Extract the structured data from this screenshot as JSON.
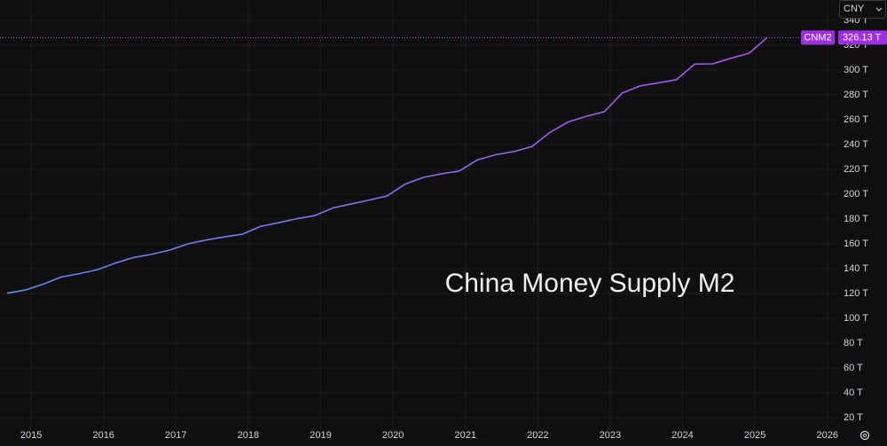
{
  "chart_data": {
    "type": "line",
    "annotation": "China Money Supply M2",
    "currency": "CNY",
    "x": [
      2014.667,
      2014.917,
      2015.167,
      2015.417,
      2015.667,
      2015.917,
      2016.167,
      2016.417,
      2016.667,
      2016.917,
      2017.167,
      2017.417,
      2017.667,
      2017.917,
      2018.167,
      2018.417,
      2018.667,
      2018.917,
      2019.167,
      2019.417,
      2019.667,
      2019.917,
      2020.167,
      2020.417,
      2020.667,
      2020.917,
      2021.167,
      2021.417,
      2021.667,
      2021.917,
      2022.167,
      2022.417,
      2022.667,
      2022.917,
      2023.167,
      2023.417,
      2023.667,
      2023.917,
      2024.167,
      2024.417,
      2024.667,
      2024.917,
      2025.167
    ],
    "series": [
      {
        "name": "CNM2",
        "colors": [
          "#5b8def",
          "#b14ff0"
        ],
        "values": [
          120.2,
          122.8,
          127.5,
          133.3,
          136.0,
          139.2,
          144.6,
          149.0,
          151.6,
          155.0,
          160.0,
          163.1,
          165.6,
          167.7,
          174.0,
          177.0,
          180.2,
          182.7,
          188.9,
          192.1,
          195.2,
          198.6,
          208.1,
          213.5,
          216.4,
          218.7,
          227.7,
          231.8,
          234.3,
          238.3,
          249.8,
          258.1,
          262.7,
          266.4,
          281.5,
          287.3,
          289.7,
          292.3,
          304.8,
          305.0,
          309.5,
          313.5,
          326.13
        ],
        "last_label": {
          "value": 326.13,
          "label": "326.13 T"
        }
      }
    ],
    "xlim": [
      2014.57,
      2026.15
    ],
    "xticks": [
      2015,
      2016,
      2017,
      2018,
      2019,
      2020,
      2021,
      2022,
      2023,
      2024,
      2025,
      2026
    ],
    "ylim": [
      10,
      356.43
    ],
    "yticks": [
      {
        "value": 20,
        "label": "20 T"
      },
      {
        "value": 40,
        "label": "40 T"
      },
      {
        "value": 60,
        "label": "60 T"
      },
      {
        "value": 80,
        "label": "80 T"
      },
      {
        "value": 100,
        "label": "100 T"
      },
      {
        "value": 120,
        "label": "120 T"
      },
      {
        "value": 140,
        "label": "140 T"
      },
      {
        "value": 160,
        "label": "160 T"
      },
      {
        "value": 180,
        "label": "180 T"
      },
      {
        "value": 200,
        "label": "200 T"
      },
      {
        "value": 220,
        "label": "220 T"
      },
      {
        "value": 240,
        "label": "240 T"
      },
      {
        "value": 260,
        "label": "260 T"
      },
      {
        "value": 280,
        "label": "280 T"
      },
      {
        "value": 300,
        "label": "300 T"
      },
      {
        "value": 320,
        "label": "320 T"
      },
      {
        "value": 340,
        "label": "340 T"
      }
    ],
    "grid": true
  }
}
